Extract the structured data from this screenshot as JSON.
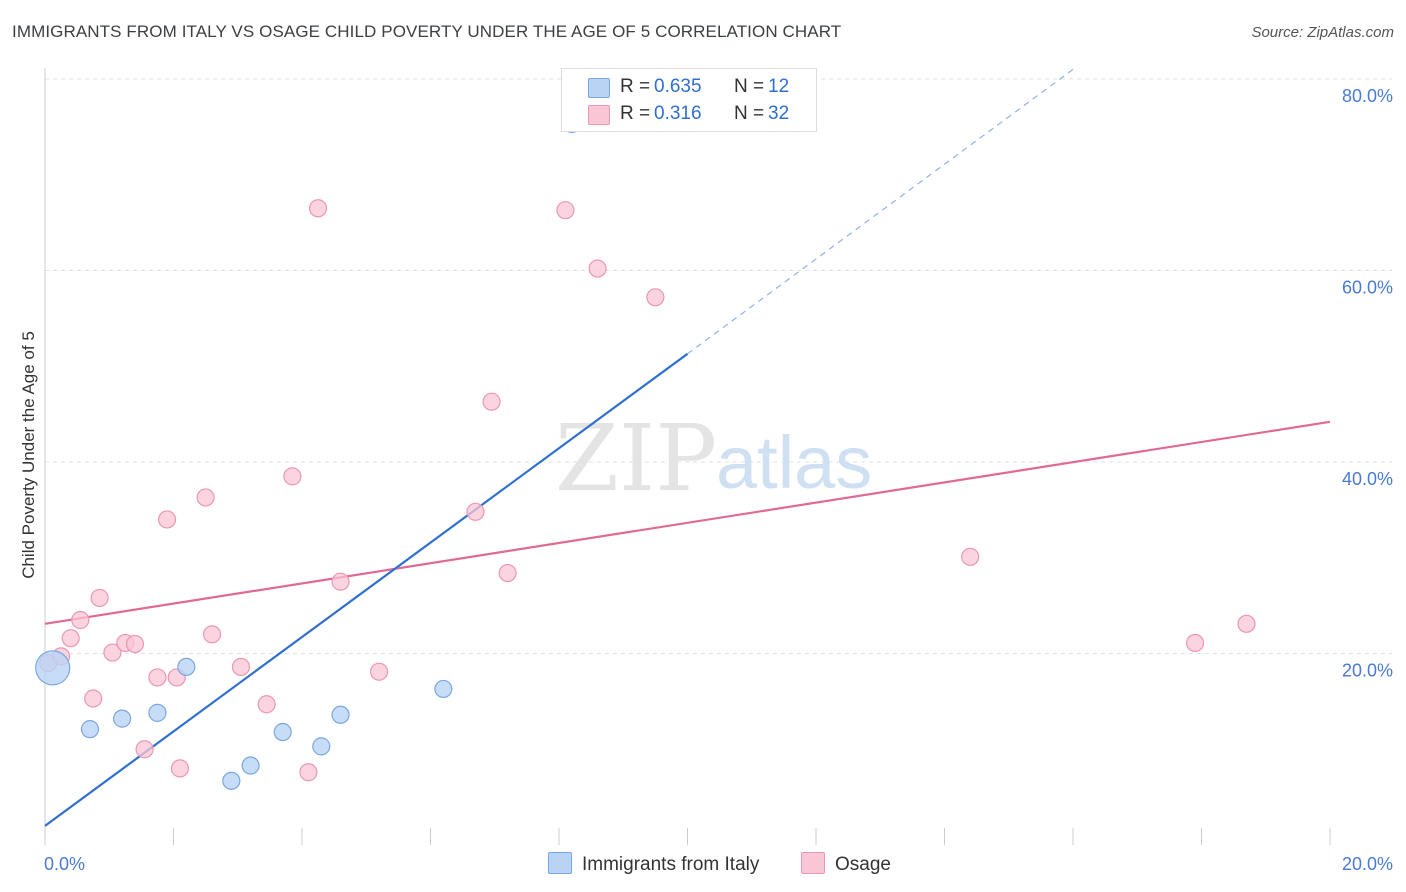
{
  "title": "IMMIGRANTS FROM ITALY VS OSAGE CHILD POVERTY UNDER THE AGE OF 5 CORRELATION CHART",
  "source": "Source: ZipAtlas.com",
  "watermark": {
    "zip": "ZIP",
    "atlas": "atlas"
  },
  "colors": {
    "blue_fill": "#b9d3f5",
    "blue_stroke": "#7aa7e3",
    "blue_line": "#2f6fd0",
    "pink_fill": "#f9c6d5",
    "pink_stroke": "#ec97b2",
    "pink_line": "#e06a95",
    "axis_text": "#4a7bd0",
    "grid": "#dde1e6"
  },
  "legend": {
    "series": [
      {
        "name": "Immigrants from Italy",
        "r_label": "R =",
        "r_value": "0.635",
        "n_label": "N =",
        "n_value": "12"
      },
      {
        "name": "Osage",
        "r_label": "R =",
        "r_value": "0.316",
        "n_label": "N =",
        "n_value": "32"
      }
    ]
  },
  "chart_data": {
    "type": "scatter",
    "title": "IMMIGRANTS FROM ITALY VS OSAGE CHILD POVERTY UNDER THE AGE OF 5 CORRELATION CHART",
    "xlabel": "",
    "ylabel": "Child Poverty Under the Age of 5",
    "xlim": [
      0,
      20
    ],
    "ylim": [
      0,
      80
    ],
    "x_tick_labels": [
      "0.0%",
      "20.0%"
    ],
    "y_tick_labels": [
      "20.0%",
      "40.0%",
      "60.0%",
      "80.0%"
    ],
    "y_ticks": [
      20,
      40,
      60,
      80
    ],
    "grid": true,
    "legend_position": "top-center",
    "series": [
      {
        "name": "Immigrants from Italy",
        "color": "#7aa7e3",
        "points": [
          {
            "x": 0.12,
            "y": 18.5,
            "size": "large"
          },
          {
            "x": 0.7,
            "y": 12.1
          },
          {
            "x": 1.2,
            "y": 13.2
          },
          {
            "x": 1.75,
            "y": 13.8
          },
          {
            "x": 2.2,
            "y": 18.6
          },
          {
            "x": 2.9,
            "y": 6.7
          },
          {
            "x": 3.2,
            "y": 8.3
          },
          {
            "x": 3.7,
            "y": 11.8
          },
          {
            "x": 4.3,
            "y": 10.3
          },
          {
            "x": 4.6,
            "y": 13.6
          },
          {
            "x": 6.2,
            "y": 16.3
          },
          {
            "x": 8.2,
            "y": 75.3
          }
        ],
        "trend": {
          "x0": 0,
          "y0": 2.0,
          "x1": 10,
          "y1": 51.3,
          "dashed_to": {
            "x": 16.0,
            "y": 81.0
          }
        }
      },
      {
        "name": "Osage",
        "color": "#ec97b2",
        "points": [
          {
            "x": 0.05,
            "y": 19.0
          },
          {
            "x": 0.25,
            "y": 19.7
          },
          {
            "x": 0.4,
            "y": 21.6
          },
          {
            "x": 0.55,
            "y": 23.5
          },
          {
            "x": 0.75,
            "y": 15.3
          },
          {
            "x": 0.85,
            "y": 25.8
          },
          {
            "x": 1.05,
            "y": 20.1
          },
          {
            "x": 1.25,
            "y": 21.1
          },
          {
            "x": 1.4,
            "y": 21.0
          },
          {
            "x": 1.55,
            "y": 10.0
          },
          {
            "x": 1.75,
            "y": 17.5
          },
          {
            "x": 1.9,
            "y": 34.0
          },
          {
            "x": 2.05,
            "y": 17.5
          },
          {
            "x": 2.1,
            "y": 8.0
          },
          {
            "x": 2.5,
            "y": 36.3
          },
          {
            "x": 2.6,
            "y": 22.0
          },
          {
            "x": 3.05,
            "y": 18.6
          },
          {
            "x": 3.45,
            "y": 14.7
          },
          {
            "x": 3.85,
            "y": 38.5
          },
          {
            "x": 4.1,
            "y": 7.6
          },
          {
            "x": 4.25,
            "y": 66.5
          },
          {
            "x": 4.6,
            "y": 27.5
          },
          {
            "x": 5.2,
            "y": 18.1
          },
          {
            "x": 6.7,
            "y": 34.8
          },
          {
            "x": 6.95,
            "y": 46.3
          },
          {
            "x": 7.2,
            "y": 28.4
          },
          {
            "x": 8.1,
            "y": 66.3
          },
          {
            "x": 8.6,
            "y": 60.2
          },
          {
            "x": 9.5,
            "y": 57.2
          },
          {
            "x": 14.4,
            "y": 30.1
          },
          {
            "x": 17.9,
            "y": 21.1
          },
          {
            "x": 18.7,
            "y": 23.1
          }
        ],
        "trend": {
          "x0": 0,
          "y0": 23.1,
          "x1": 20,
          "y1": 44.2
        }
      }
    ]
  }
}
